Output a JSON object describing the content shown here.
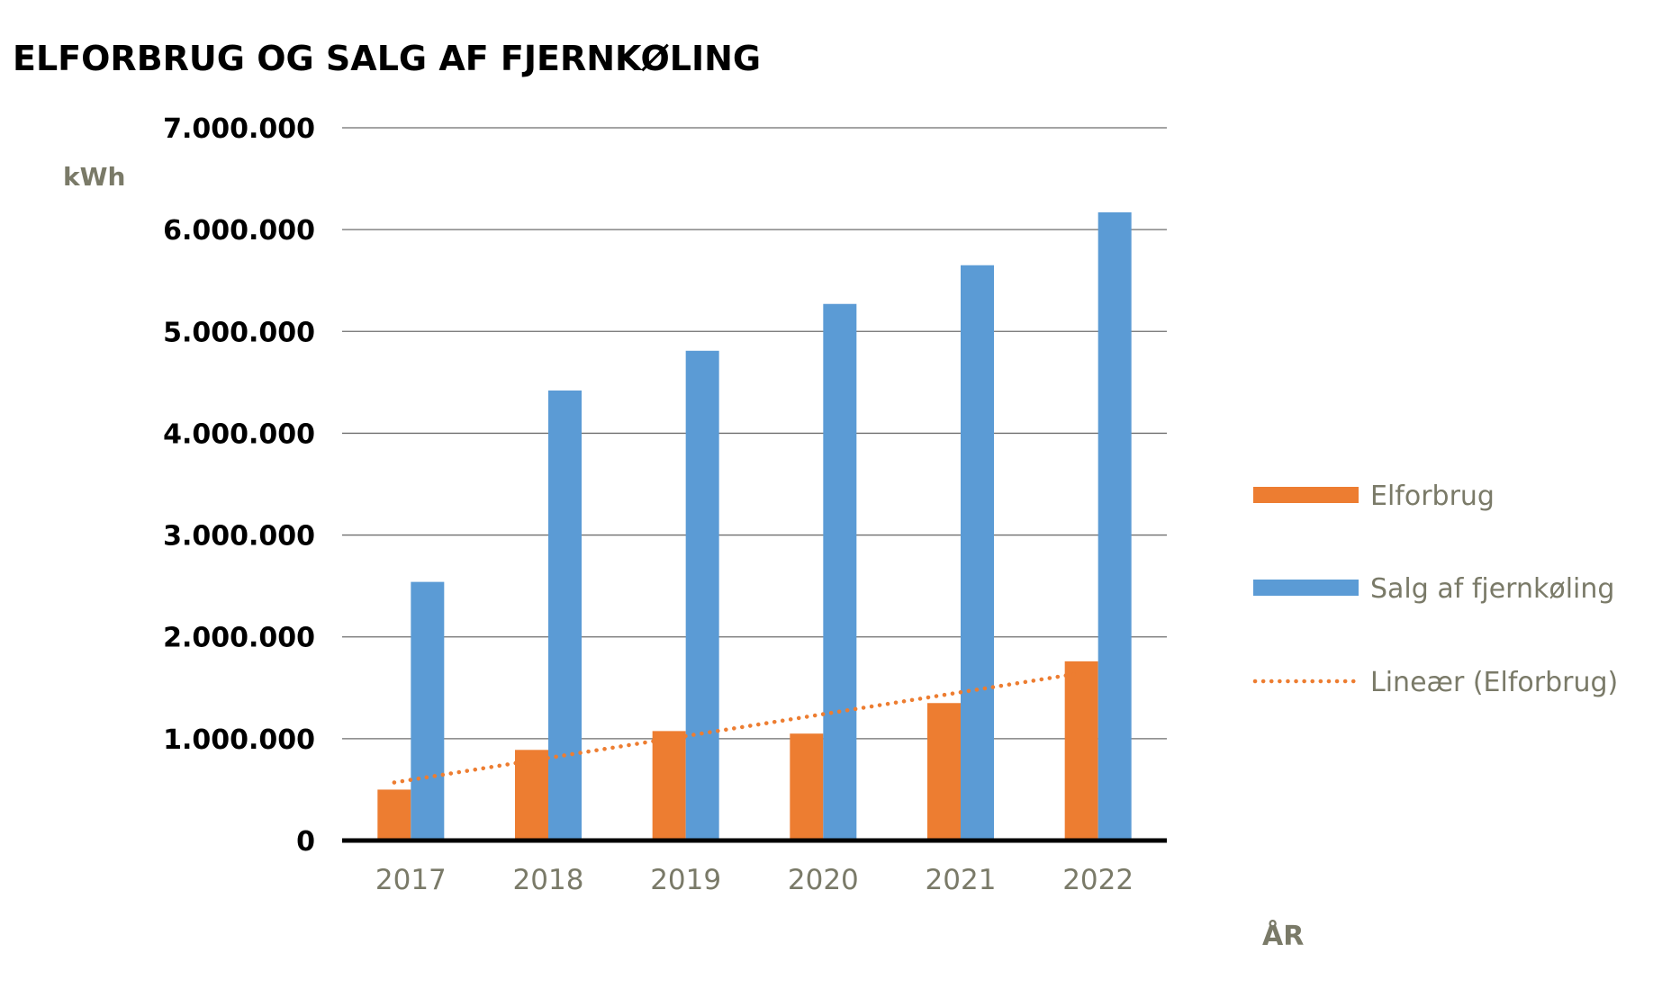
{
  "chart_data": {
    "type": "bar",
    "title": "ELFORBRUG OG SALG AF FJERNKØLING",
    "ylabel": "kWh",
    "xlabel": "ÅR",
    "categories": [
      "2017",
      "2018",
      "2019",
      "2020",
      "2021",
      "2022"
    ],
    "ylim": [
      0,
      7000000
    ],
    "yticks": [
      0,
      1000000,
      2000000,
      3000000,
      4000000,
      5000000,
      6000000,
      7000000
    ],
    "ytick_labels": [
      "0",
      "1.000.000",
      "2.000.000",
      "3.000.000",
      "4.000.000",
      "5.000.000",
      "6.000.000",
      "7.000.000"
    ],
    "grid": true,
    "legend_position": "right",
    "series": [
      {
        "name": "Elforbrug",
        "color": "#ed7d31",
        "values": [
          500000,
          890000,
          1075000,
          1050000,
          1350000,
          1760000
        ]
      },
      {
        "name": "Salg af fjernkøling",
        "color": "#5b9bd5",
        "values": [
          2540000,
          4420000,
          4810000,
          5270000,
          5650000,
          6170000
        ]
      }
    ],
    "trendline": {
      "name": "Lineær (Elforbrug)",
      "of_series": "Elforbrug",
      "color": "#ed7d31",
      "style": "dotted",
      "values": [
        570000,
        785000,
        1000000,
        1215000,
        1430000,
        1645000
      ]
    }
  }
}
